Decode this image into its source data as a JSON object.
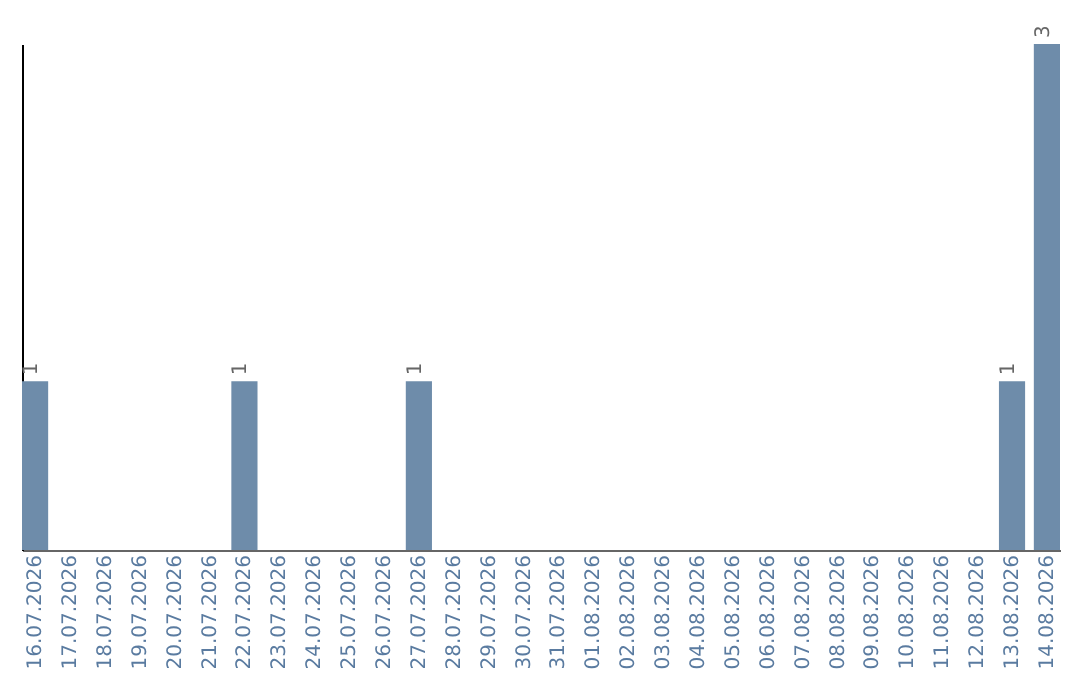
{
  "chart_data": {
    "type": "bar",
    "categories": [
      "16.07.2026",
      "17.07.2026",
      "18.07.2026",
      "19.07.2026",
      "20.07.2026",
      "21.07.2026",
      "22.07.2026",
      "23.07.2026",
      "24.07.2026",
      "25.07.2026",
      "26.07.2026",
      "27.07.2026",
      "28.07.2026",
      "29.07.2026",
      "30.07.2026",
      "31.07.2026",
      "01.08.2026",
      "02.08.2026",
      "03.08.2026",
      "04.08.2026",
      "05.08.2026",
      "06.08.2026",
      "07.08.2026",
      "08.08.2026",
      "09.08.2026",
      "10.08.2026",
      "11.08.2026",
      "12.08.2026",
      "13.08.2026",
      "14.08.2026"
    ],
    "values": [
      1,
      0,
      0,
      0,
      0,
      0,
      1,
      0,
      0,
      0,
      0,
      1,
      0,
      0,
      0,
      0,
      0,
      0,
      0,
      0,
      0,
      0,
      0,
      0,
      0,
      0,
      0,
      0,
      1,
      3
    ],
    "color": "#6e8caa",
    "value_labels": [
      "1",
      null,
      null,
      null,
      null,
      null,
      "1",
      null,
      null,
      null,
      null,
      "1",
      null,
      null,
      null,
      null,
      null,
      null,
      null,
      null,
      null,
      null,
      null,
      null,
      null,
      null,
      null,
      null,
      "1",
      "3"
    ],
    "tick_labels": "x",
    "grid": false
  }
}
